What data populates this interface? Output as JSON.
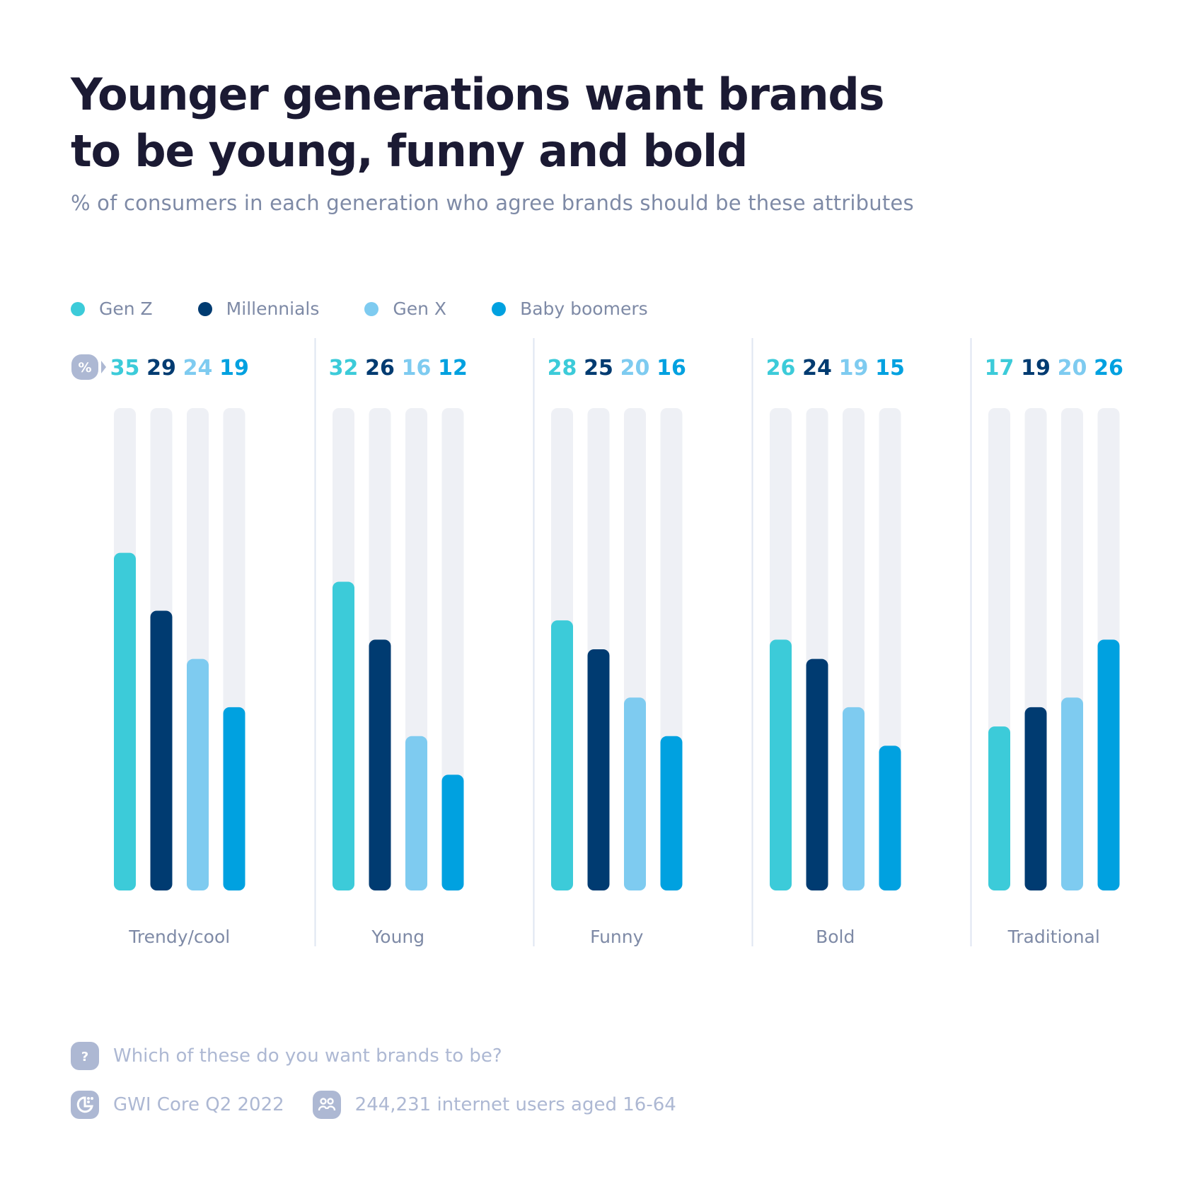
{
  "header": {
    "title_line1": "Younger generations want brands",
    "title_line2": "to be young, funny and bold",
    "subtitle": "% of consumers in each generation who agree brands should be these attributes"
  },
  "legend": [
    {
      "label": "Gen Z",
      "color": "#3ccbd9"
    },
    {
      "label": "Millennials",
      "color": "#003b71"
    },
    {
      "label": "Gen X",
      "color": "#7ecbf0"
    },
    {
      "label": "Baby boomers",
      "color": "#00a1e0"
    }
  ],
  "unit_badge": "%",
  "chart_data": {
    "type": "bar",
    "title": "Younger generations want brands to be young, funny and bold",
    "subtitle": "% of consumers in each generation who agree brands should be these attributes",
    "xlabel": "",
    "ylabel": "%",
    "ylim": [
      0,
      50
    ],
    "grid": false,
    "legend_position": "top-left",
    "categories": [
      "Trendy/cool",
      "Young",
      "Funny",
      "Bold",
      "Traditional"
    ],
    "series": [
      {
        "name": "Gen Z",
        "color": "#3ccbd9",
        "values": [
          35,
          32,
          28,
          26,
          17
        ]
      },
      {
        "name": "Millennials",
        "color": "#003b71",
        "values": [
          29,
          26,
          25,
          24,
          19
        ]
      },
      {
        "name": "Gen X",
        "color": "#7ecbf0",
        "values": [
          24,
          16,
          20,
          19,
          20
        ]
      },
      {
        "name": "Baby boomers",
        "color": "#00a1e0",
        "values": [
          19,
          12,
          16,
          15,
          26
        ]
      }
    ],
    "track_color": "#eef0f5",
    "divider_color": "#dfe6f2"
  },
  "footer": {
    "question_icon": "question-icon",
    "question": "Which of these do you want brands to be?",
    "source_icon": "gwi-logo-icon",
    "source": "GWI Core Q2 2022",
    "sample_icon": "users-icon",
    "sample": "244,231 internet users aged 16-64"
  }
}
